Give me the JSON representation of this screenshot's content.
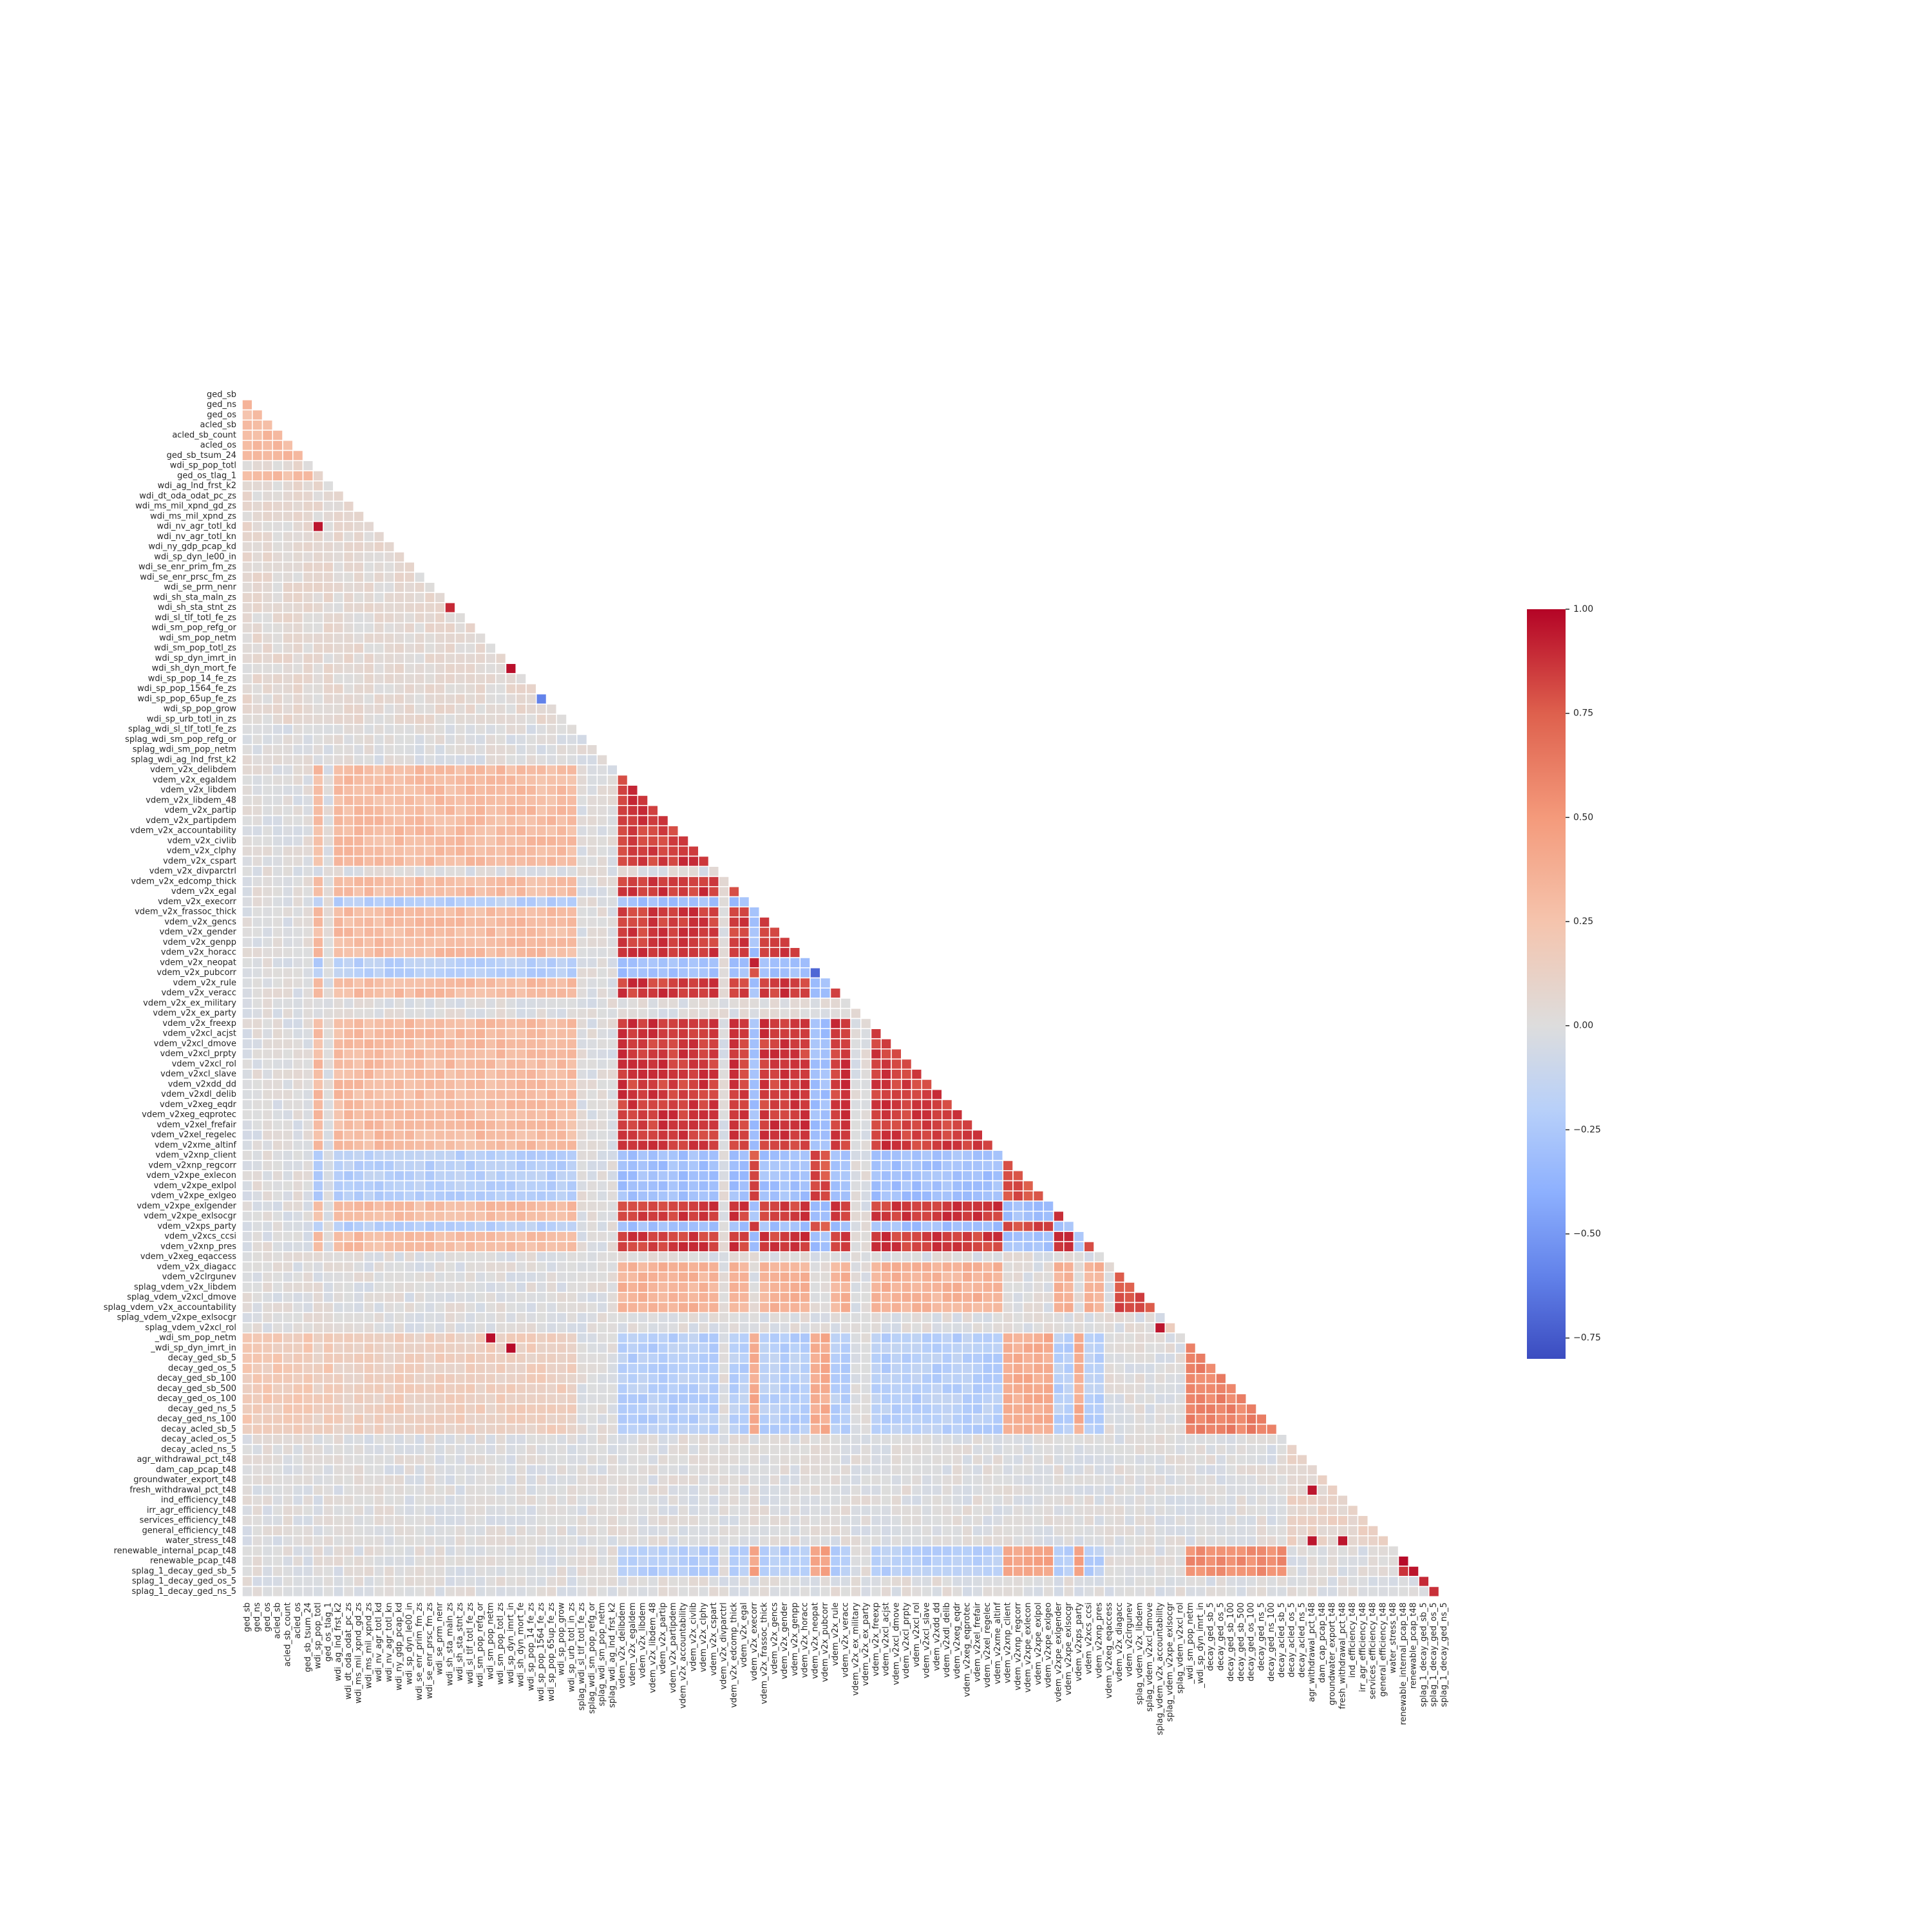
{
  "chart_data": {
    "type": "heatmap",
    "subtype": "lower-triangle correlation matrix (diagonal masked)",
    "title": "",
    "xlabel": "",
    "ylabel": "",
    "variables": [
      "ged_sb",
      "ged_ns",
      "ged_os",
      "acled_sb",
      "acled_sb_count",
      "acled_os",
      "ged_sb_tsum_24",
      "wdi_sp_pop_totl",
      "ged_os_tlag_1",
      "wdi_ag_lnd_frst_k2",
      "wdi_dt_oda_odat_pc_zs",
      "wdi_ms_mil_xpnd_gd_zs",
      "wdi_ms_mil_xpnd_zs",
      "wdi_nv_agr_totl_kd",
      "wdi_nv_agr_totl_kn",
      "wdi_ny_gdp_pcap_kd",
      "wdi_sp_dyn_le00_in",
      "wdi_se_enr_prim_fm_zs",
      "wdi_se_enr_prsc_fm_zs",
      "wdi_se_prm_nenr",
      "wdi_sh_sta_maln_zs",
      "wdi_sh_sta_stnt_zs",
      "wdi_sl_tlf_totl_fe_zs",
      "wdi_sm_pop_refg_or",
      "wdi_sm_pop_netm",
      "wdi_sm_pop_totl_zs",
      "wdi_sp_dyn_imrt_in",
      "wdi_sh_dyn_mort_fe",
      "wdi_sp_pop_14_fe_zs",
      "wdi_sp_pop_1564_fe_zs",
      "wdi_sp_pop_65up_fe_zs",
      "wdi_sp_pop_grow",
      "wdi_sp_urb_totl_in_zs",
      "splag_wdi_sl_tlf_totl_fe_zs",
      "splag_wdi_sm_pop_refg_or",
      "splag_wdi_sm_pop_netm",
      "splag_wdi_ag_lnd_frst_k2",
      "vdem_v2x_delibdem",
      "vdem_v2x_egaldem",
      "vdem_v2x_libdem",
      "vdem_v2x_libdem_48",
      "vdem_v2x_partip",
      "vdem_v2x_partipdem",
      "vdem_v2x_accountability",
      "vdem_v2x_civlib",
      "vdem_v2x_clphy",
      "vdem_v2x_cspart",
      "vdem_v2x_divparctrl",
      "vdem_v2x_edcomp_thick",
      "vdem_v2x_egal",
      "vdem_v2x_execorr",
      "vdem_v2x_frassoc_thick",
      "vdem_v2x_gencs",
      "vdem_v2x_gender",
      "vdem_v2x_genpp",
      "vdem_v2x_horacc",
      "vdem_v2x_neopat",
      "vdem_v2x_pubcorr",
      "vdem_v2x_rule",
      "vdem_v2x_veracc",
      "vdem_v2x_ex_military",
      "vdem_v2x_ex_party",
      "vdem_v2x_freexp",
      "vdem_v2xcl_acjst",
      "vdem_v2xcl_dmove",
      "vdem_v2xcl_prpty",
      "vdem_v2xcl_rol",
      "vdem_v2xcl_slave",
      "vdem_v2xdd_dd",
      "vdem_v2xdl_delib",
      "vdem_v2xeg_eqdr",
      "vdem_v2xeg_eqprotec",
      "vdem_v2xel_frefair",
      "vdem_v2xel_regelec",
      "vdem_v2xme_altinf",
      "vdem_v2xnp_client",
      "vdem_v2xnp_regcorr",
      "vdem_v2xpe_exlecon",
      "vdem_v2xpe_exlpol",
      "vdem_v2xpe_exlgeo",
      "vdem_v2xpe_exlgender",
      "vdem_v2xpe_exlsocgr",
      "vdem_v2xps_party",
      "vdem_v2xcs_ccsi",
      "vdem_v2xnp_pres",
      "vdem_v2xeg_eqaccess",
      "vdem_v2x_diagacc",
      "vdem_v2clrgunev",
      "splag_vdem_v2x_libdem",
      "splag_vdem_v2xcl_dmove",
      "splag_vdem_v2x_accountability",
      "splag_vdem_v2xpe_exlsocgr",
      "splag_vdem_v2xcl_rol",
      "_wdi_sm_pop_netm",
      "_wdi_sp_dyn_imrt_in",
      "decay_ged_sb_5",
      "decay_ged_os_5",
      "decay_ged_sb_100",
      "decay_ged_sb_500",
      "decay_ged_os_100",
      "decay_ged_ns_5",
      "decay_ged_ns_100",
      "decay_acled_sb_5",
      "decay_acled_os_5",
      "decay_acled_ns_5",
      "agr_withdrawal_pct_t48",
      "dam_cap_pcap_t48",
      "groundwater_export_t48",
      "fresh_withdrawal_pct_t48",
      "ind_efficiency_t48",
      "irr_agr_efficiency_t48",
      "services_efficiency_t48",
      "general_efficiency_t48",
      "water_stress_t48",
      "renewable_internal_pcap_t48",
      "renewable_pcap_t48",
      "splag_1_decay_ged_sb_5",
      "splag_1_decay_ged_os_5",
      "splag_1_decay_ged_ns_5"
    ],
    "groups": {
      "conflict": [
        0,
        1,
        2,
        3,
        4,
        5,
        6,
        8
      ],
      "wdi": [
        7,
        9,
        10,
        11,
        12,
        13,
        14,
        15,
        16,
        17,
        18,
        19,
        20,
        21,
        22,
        23,
        24,
        25,
        26,
        27,
        28,
        29,
        30,
        31,
        32
      ],
      "splag_wdi": [
        33,
        34,
        35,
        36
      ],
      "vdem_dem": [
        37,
        38,
        39,
        40,
        41,
        42,
        43,
        44,
        45,
        46,
        48,
        49,
        51,
        52,
        53,
        54,
        55,
        58,
        59,
        62,
        63,
        64,
        65,
        66,
        67,
        68,
        69,
        70,
        71,
        72,
        73,
        74,
        80,
        81,
        83,
        84
      ],
      "vdem_corr": [
        50,
        56,
        57,
        75,
        76,
        77,
        78,
        79,
        82
      ],
      "vdem_other": [
        47,
        60,
        61,
        85
      ],
      "splag_vdem": [
        86,
        87,
        88,
        89,
        90
      ],
      "underscore_wdi": [
        91,
        92
      ],
      "decay": [
        93,
        94,
        95,
        96,
        97,
        98,
        99,
        100,
        101,
        102
      ],
      "water": [
        103,
        104,
        105,
        106,
        107,
        108,
        109,
        110,
        111,
        112,
        113
      ],
      "splag_decay": [
        114,
        115,
        116
      ]
    },
    "group_pair_correlations": {
      "conflict|conflict": 0.3,
      "conflict|wdi": 0.05,
      "conflict|decay": 0.2,
      "wdi|wdi": 0.05,
      "wdi|vdem_dem": 0.3,
      "wdi|vdem_corr": -0.2,
      "wdi|decay": 0.15,
      "vdem_dem|vdem_dem": 0.85,
      "vdem_corr|vdem_corr": 0.8,
      "vdem_dem|vdem_corr": -0.3,
      "vdem_dem|decay": -0.2,
      "vdem_corr|decay": 0.4,
      "vdem_dem|splag_vdem": 0.35,
      "vdem_dem|splag_decay": -0.2,
      "vdem_corr|splag_decay": 0.45,
      "splag_vdem|splag_vdem": 0.8,
      "decay|decay": 0.6,
      "decay|splag_decay": 0.55,
      "splag_decay|splag_decay": 0.9,
      "water|water": 0.1,
      "underscore_wdi|underscore_wdi": 0.2,
      "default": 0.0
    },
    "notable_cells": [
      {
        "row": "wdi_nv_agr_totl_kd",
        "col": "wdi_sp_pop_totl",
        "value": 0.95
      },
      {
        "row": "wdi_sh_sta_stnt_zs",
        "col": "wdi_sh_sta_maln_zs",
        "value": 0.9
      },
      {
        "row": "wdi_sh_dyn_mort_fe",
        "col": "wdi_sp_dyn_imrt_in",
        "value": 0.97
      },
      {
        "row": "wdi_sp_pop_65up_fe_zs",
        "col": "wdi_sp_pop_1564_fe_zs",
        "value": -0.6
      },
      {
        "row": "vdem_v2x_neopat",
        "col": "vdem_v2x_execorr",
        "value": 0.92
      },
      {
        "row": "vdem_v2x_pubcorr",
        "col": "vdem_v2x_neopat",
        "value": -0.7
      },
      {
        "row": "splag_vdem_v2xcl_rol",
        "col": "splag_vdem_v2x_accountability",
        "value": 0.95
      },
      {
        "row": "_wdi_sm_pop_netm",
        "col": "wdi_sm_pop_netm",
        "value": 0.97
      },
      {
        "row": "_wdi_sp_dyn_imrt_in",
        "col": "wdi_sp_dyn_imrt_in",
        "value": 0.98
      },
      {
        "row": "fresh_withdrawal_pct_t48",
        "col": "agr_withdrawal_pct_t48",
        "value": 0.95
      },
      {
        "row": "water_stress_t48",
        "col": "agr_withdrawal_pct_t48",
        "value": 0.95
      },
      {
        "row": "water_stress_t48",
        "col": "fresh_withdrawal_pct_t48",
        "value": 0.95
      },
      {
        "row": "renewable_pcap_t48",
        "col": "renewable_internal_pcap_t48",
        "value": 0.98
      },
      {
        "row": "splag_1_decay_ged_os_5",
        "col": "splag_1_decay_ged_sb_5",
        "value": 0.9
      },
      {
        "row": "splag_1_decay_ged_ns_5",
        "col": "splag_1_decay_ged_os_5",
        "value": 0.88
      }
    ],
    "colormap": "coolwarm",
    "color_range": [
      -0.8,
      1.0
    ],
    "colorbar": {
      "ticks": [
        1.0,
        0.75,
        0.5,
        0.25,
        0.0,
        -0.25,
        -0.5,
        -0.75
      ],
      "tick_labels": [
        "1.00",
        "0.75",
        "0.50",
        "0.25",
        "0.00",
        "−0.25",
        "−0.50",
        "−0.75"
      ]
    },
    "colors": {
      "cmap_low": "#3b4cc0",
      "cmap_mid": "#dddddd",
      "cmap_high": "#b40426",
      "cell_border": "#ffffff"
    },
    "grid": false,
    "legend": "colorbar-right"
  }
}
